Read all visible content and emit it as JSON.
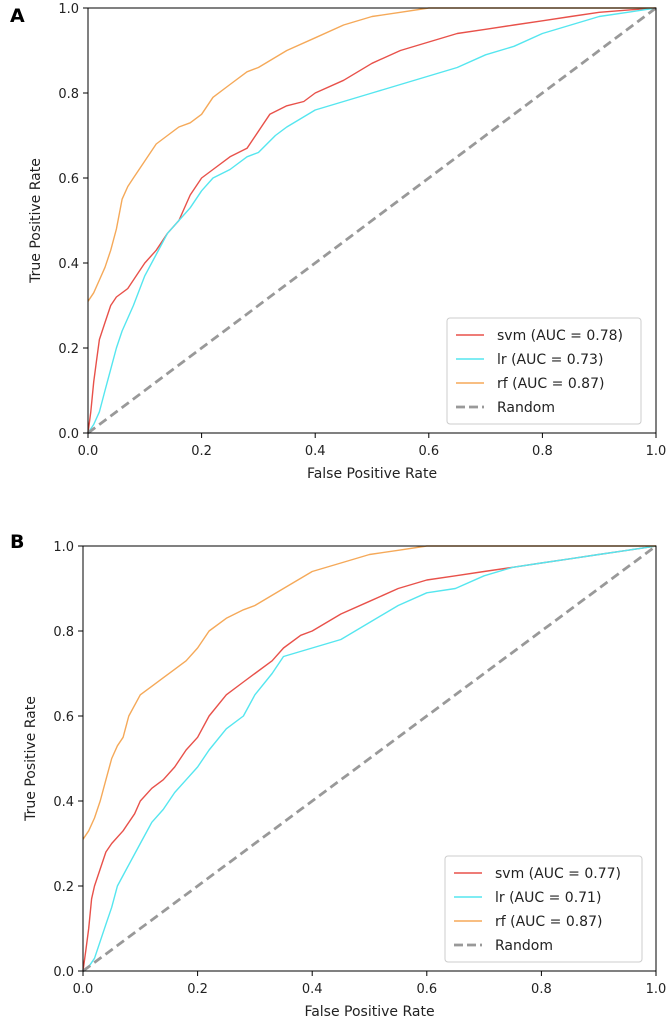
{
  "chart_data": [
    {
      "panel_label": "A",
      "type": "line",
      "title": "",
      "xlabel": "False Positive Rate",
      "ylabel": "True Positive Rate",
      "xlim": [
        0,
        1
      ],
      "ylim": [
        0,
        1
      ],
      "xticks": [
        "0.0",
        "0.2",
        "0.4",
        "0.6",
        "0.8",
        "1.0"
      ],
      "yticks": [
        "0.0",
        "0.2",
        "0.4",
        "0.6",
        "0.8",
        "1.0"
      ],
      "grid": false,
      "legend_position": "lower-right",
      "series": [
        {
          "name": "svm (AUC = 0.78)",
          "color": "#e8514a",
          "dashed": false,
          "x": [
            0,
            0.005,
            0.01,
            0.015,
            0.02,
            0.03,
            0.04,
            0.05,
            0.07,
            0.09,
            0.1,
            0.12,
            0.14,
            0.16,
            0.18,
            0.2,
            0.22,
            0.25,
            0.28,
            0.3,
            0.32,
            0.35,
            0.38,
            0.4,
            0.45,
            0.5,
            0.55,
            0.6,
            0.65,
            0.7,
            0.75,
            0.8,
            0.85,
            0.9,
            0.95,
            1
          ],
          "y": [
            0,
            0.05,
            0.12,
            0.17,
            0.22,
            0.26,
            0.3,
            0.32,
            0.34,
            0.38,
            0.4,
            0.43,
            0.47,
            0.5,
            0.56,
            0.6,
            0.62,
            0.65,
            0.67,
            0.71,
            0.75,
            0.77,
            0.78,
            0.8,
            0.83,
            0.87,
            0.9,
            0.92,
            0.94,
            0.95,
            0.96,
            0.97,
            0.98,
            0.99,
            0.995,
            1
          ]
        },
        {
          "name": "lr (AUC = 0.73)",
          "color": "#55e6ef",
          "dashed": false,
          "x": [
            0,
            0.01,
            0.02,
            0.03,
            0.04,
            0.05,
            0.06,
            0.08,
            0.1,
            0.12,
            0.14,
            0.16,
            0.18,
            0.2,
            0.22,
            0.25,
            0.28,
            0.3,
            0.33,
            0.35,
            0.4,
            0.45,
            0.5,
            0.55,
            0.6,
            0.65,
            0.7,
            0.75,
            0.8,
            0.85,
            0.9,
            0.95,
            1
          ],
          "y": [
            0,
            0.02,
            0.05,
            0.1,
            0.15,
            0.2,
            0.24,
            0.3,
            0.37,
            0.42,
            0.47,
            0.5,
            0.53,
            0.57,
            0.6,
            0.62,
            0.65,
            0.66,
            0.7,
            0.72,
            0.76,
            0.78,
            0.8,
            0.82,
            0.84,
            0.86,
            0.89,
            0.91,
            0.94,
            0.96,
            0.98,
            0.99,
            1
          ]
        },
        {
          "name": "rf (AUC = 0.87)",
          "color": "#f5a959",
          "dashed": false,
          "x": [
            0,
            0.01,
            0.02,
            0.03,
            0.04,
            0.05,
            0.06,
            0.07,
            0.08,
            0.1,
            0.12,
            0.14,
            0.16,
            0.18,
            0.2,
            0.22,
            0.25,
            0.28,
            0.3,
            0.35,
            0.4,
            0.45,
            0.5,
            0.55,
            0.6,
            0.65,
            0.7,
            1
          ],
          "y": [
            0.31,
            0.33,
            0.36,
            0.39,
            0.43,
            0.48,
            0.55,
            0.58,
            0.6,
            0.64,
            0.68,
            0.7,
            0.72,
            0.73,
            0.75,
            0.79,
            0.82,
            0.85,
            0.86,
            0.9,
            0.93,
            0.96,
            0.98,
            0.99,
            1,
            1,
            1,
            1
          ]
        },
        {
          "name": "Random",
          "color": "#999999",
          "dashed": true,
          "x": [
            0,
            1
          ],
          "y": [
            0,
            1
          ]
        }
      ]
    },
    {
      "panel_label": "B",
      "type": "line",
      "title": "",
      "xlabel": "False Positive Rate",
      "ylabel": "True Positive Rate",
      "xlim": [
        0,
        1
      ],
      "ylim": [
        0,
        1
      ],
      "xticks": [
        "0.0",
        "0.2",
        "0.4",
        "0.6",
        "0.8",
        "1.0"
      ],
      "yticks": [
        "0.0",
        "0.2",
        "0.4",
        "0.6",
        "0.8",
        "1.0"
      ],
      "grid": false,
      "legend_position": "lower-right",
      "series": [
        {
          "name": "svm (AUC = 0.77)",
          "color": "#e8514a",
          "dashed": false,
          "x": [
            0,
            0.005,
            0.01,
            0.015,
            0.02,
            0.03,
            0.04,
            0.05,
            0.07,
            0.09,
            0.1,
            0.12,
            0.14,
            0.16,
            0.18,
            0.2,
            0.22,
            0.25,
            0.28,
            0.3,
            0.33,
            0.35,
            0.38,
            0.4,
            0.45,
            0.5,
            0.55,
            0.6,
            0.65,
            0.7,
            0.75,
            0.8,
            0.85,
            0.9,
            0.95,
            1
          ],
          "y": [
            0,
            0.05,
            0.1,
            0.17,
            0.2,
            0.24,
            0.28,
            0.3,
            0.33,
            0.37,
            0.4,
            0.43,
            0.45,
            0.48,
            0.52,
            0.55,
            0.6,
            0.65,
            0.68,
            0.7,
            0.73,
            0.76,
            0.79,
            0.8,
            0.84,
            0.87,
            0.9,
            0.92,
            0.93,
            0.94,
            0.95,
            0.96,
            0.97,
            0.98,
            0.99,
            1
          ]
        },
        {
          "name": "lr (AUC = 0.71)",
          "color": "#55e6ef",
          "dashed": false,
          "x": [
            0,
            0.01,
            0.02,
            0.03,
            0.04,
            0.05,
            0.06,
            0.08,
            0.1,
            0.12,
            0.14,
            0.16,
            0.18,
            0.2,
            0.22,
            0.25,
            0.28,
            0.3,
            0.33,
            0.35,
            0.4,
            0.45,
            0.5,
            0.55,
            0.6,
            0.65,
            0.7,
            0.75,
            0.8,
            0.85,
            0.9,
            0.95,
            1
          ],
          "y": [
            0,
            0.01,
            0.03,
            0.07,
            0.11,
            0.15,
            0.2,
            0.25,
            0.3,
            0.35,
            0.38,
            0.42,
            0.45,
            0.48,
            0.52,
            0.57,
            0.6,
            0.65,
            0.7,
            0.74,
            0.76,
            0.78,
            0.82,
            0.86,
            0.89,
            0.9,
            0.93,
            0.95,
            0.96,
            0.97,
            0.98,
            0.99,
            1
          ]
        },
        {
          "name": "rf (AUC = 0.87)",
          "color": "#f5a959",
          "dashed": false,
          "x": [
            0,
            0.01,
            0.02,
            0.03,
            0.04,
            0.05,
            0.06,
            0.07,
            0.08,
            0.1,
            0.12,
            0.14,
            0.16,
            0.18,
            0.2,
            0.22,
            0.25,
            0.28,
            0.3,
            0.35,
            0.4,
            0.45,
            0.5,
            0.55,
            0.6,
            0.65,
            0.7,
            1
          ],
          "y": [
            0.31,
            0.33,
            0.36,
            0.4,
            0.45,
            0.5,
            0.53,
            0.55,
            0.6,
            0.65,
            0.67,
            0.69,
            0.71,
            0.73,
            0.76,
            0.8,
            0.83,
            0.85,
            0.86,
            0.9,
            0.94,
            0.96,
            0.98,
            0.99,
            1,
            1,
            1,
            1
          ]
        },
        {
          "name": "Random",
          "color": "#999999",
          "dashed": true,
          "x": [
            0,
            1
          ],
          "y": [
            0,
            1
          ]
        }
      ]
    }
  ]
}
